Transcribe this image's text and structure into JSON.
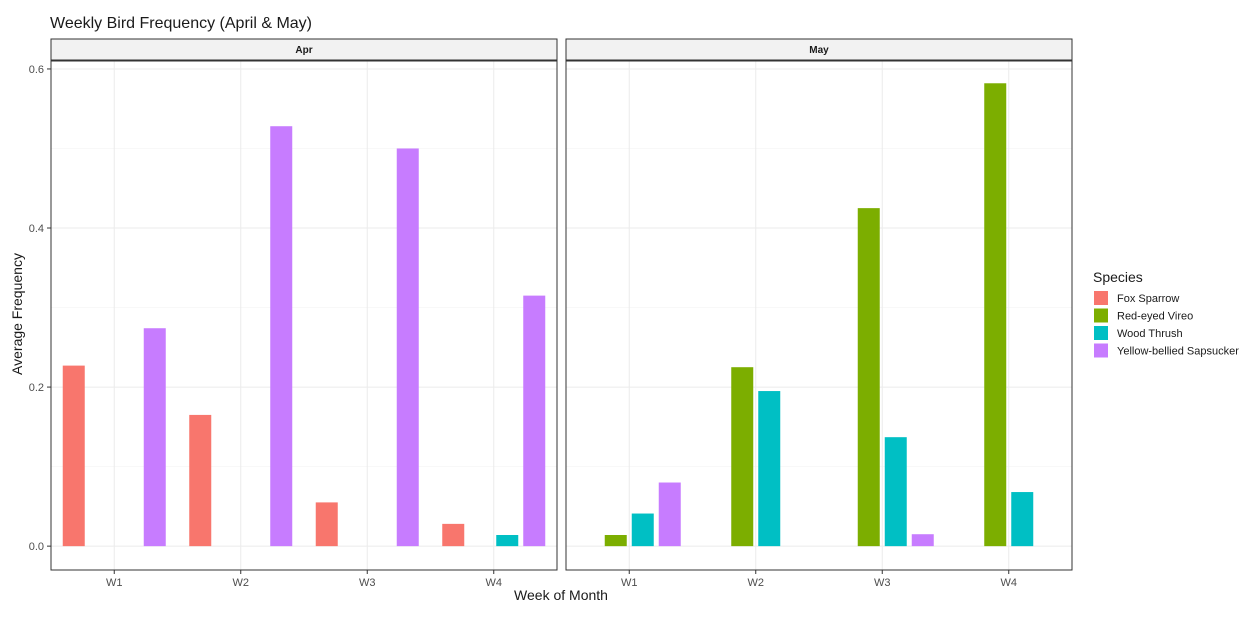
{
  "chart_data": {
    "type": "bar",
    "title": "Weekly Bird Frequency (April & May)",
    "xlabel": "Week of Month",
    "ylabel": "Average Frequency",
    "ylim": [
      -0.03,
      0.61
    ],
    "yticks": [
      "0.0",
      "0.2",
      "0.4",
      "0.6"
    ],
    "grid": true,
    "legend_position": "right",
    "categories": [
      "W1",
      "W2",
      "W3",
      "W4"
    ],
    "species": [
      "Fox Sparrow",
      "Red-eyed Vireo",
      "Wood Thrush",
      "Yellow-bellied Sapsucker"
    ],
    "colors": {
      "Fox Sparrow": "#F8766D",
      "Red-eyed Vireo": "#7CAE00",
      "Wood Thrush": "#00BFC4",
      "Yellow-bellied Sapsucker": "#C77CFF"
    },
    "facets": [
      {
        "name": "Apr",
        "series": [
          {
            "name": "Fox Sparrow",
            "values": [
              0.227,
              0.165,
              0.055,
              0.028
            ]
          },
          {
            "name": "Red-eyed Vireo",
            "values": [
              null,
              null,
              null,
              null
            ]
          },
          {
            "name": "Wood Thrush",
            "values": [
              null,
              null,
              null,
              0.014
            ]
          },
          {
            "name": "Yellow-bellied Sapsucker",
            "values": [
              0.274,
              0.528,
              0.5,
              0.315
            ]
          }
        ]
      },
      {
        "name": "May",
        "series": [
          {
            "name": "Fox Sparrow",
            "values": [
              null,
              null,
              null,
              null
            ]
          },
          {
            "name": "Red-eyed Vireo",
            "values": [
              0.014,
              0.225,
              0.425,
              0.582
            ]
          },
          {
            "name": "Wood Thrush",
            "values": [
              0.041,
              0.195,
              0.137,
              0.068
            ]
          },
          {
            "name": "Yellow-bellied Sapsucker",
            "values": [
              0.08,
              null,
              0.015,
              null
            ]
          }
        ]
      }
    ]
  },
  "legend": {
    "title": "Species",
    "items": [
      "Fox Sparrow",
      "Red-eyed Vireo",
      "Wood Thrush",
      "Yellow-bellied Sapsucker"
    ]
  }
}
